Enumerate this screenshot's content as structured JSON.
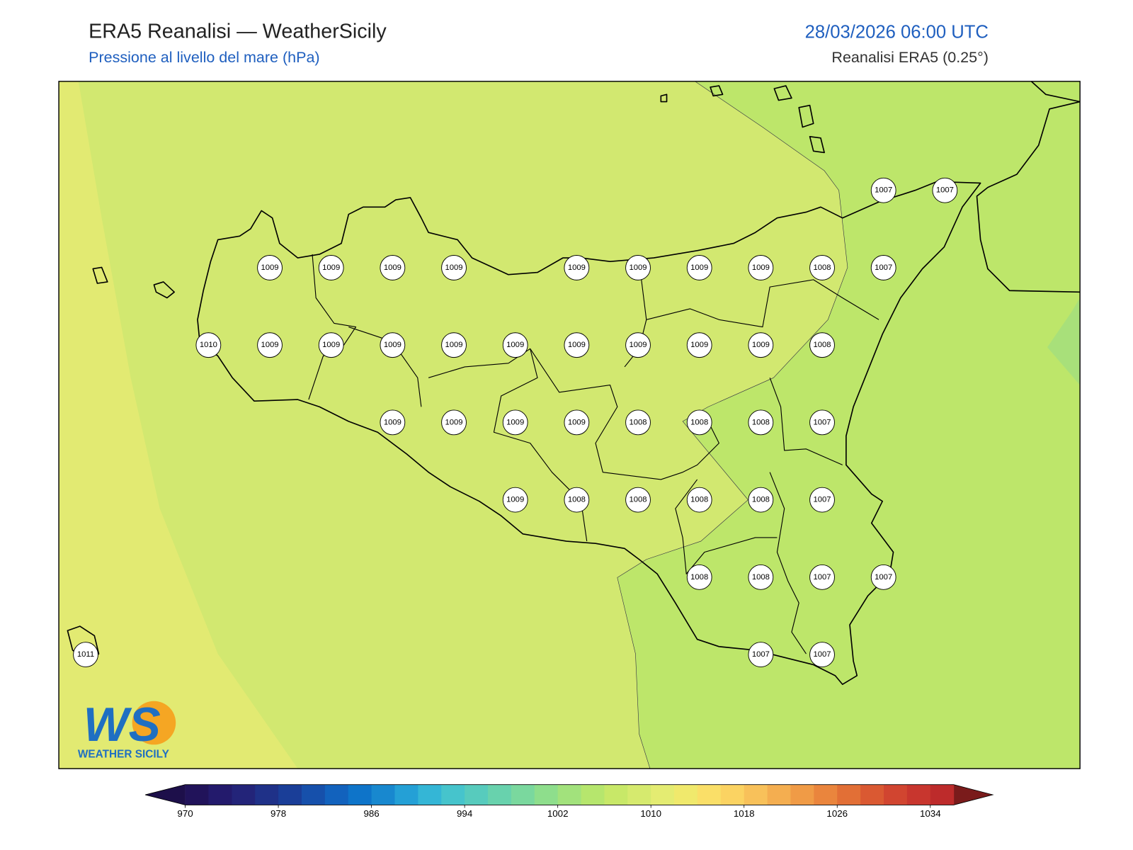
{
  "header": {
    "title": "ERA5 Reanalisi — WeatherSicily",
    "subtitle": "Pressione al livello del mare (hPa)",
    "datetime": "28/03/2026 06:00 UTC",
    "source": "Reanalisi ERA5 (0.25°)"
  },
  "stations": [
    [
      null,
      null,
      null,
      null,
      null,
      null,
      null,
      null,
      null,
      null,
      null,
      null,
      null,
      1007,
      1007
    ],
    [
      null,
      null,
      null,
      1009,
      1009,
      1009,
      1009,
      null,
      1009,
      1009,
      1009,
      1009,
      1008,
      1007,
      null
    ],
    [
      null,
      null,
      1010,
      1009,
      1009,
      1009,
      1009,
      1009,
      1009,
      1009,
      1009,
      1009,
      1008,
      null,
      null
    ],
    [
      null,
      null,
      null,
      null,
      null,
      1009,
      1009,
      1009,
      1009,
      1008,
      1008,
      1008,
      1007,
      null,
      null
    ],
    [
      null,
      null,
      null,
      null,
      null,
      null,
      null,
      1009,
      1008,
      1008,
      1008,
      1008,
      1007,
      null,
      null
    ],
    [
      null,
      null,
      null,
      null,
      null,
      null,
      null,
      null,
      null,
      null,
      1008,
      1008,
      1007,
      1007,
      null
    ],
    [
      1011,
      null,
      null,
      null,
      null,
      null,
      null,
      null,
      null,
      null,
      null,
      1007,
      1007,
      null,
      null
    ]
  ],
  "colorbar": {
    "range": [
      970,
      1036
    ],
    "ticks": [
      970,
      978,
      986,
      994,
      1002,
      1010,
      1018,
      1026,
      1034
    ],
    "colors": [
      "#21135a",
      "#231a6c",
      "#232479",
      "#1f3188",
      "#1a3e98",
      "#1650ab",
      "#1262bd",
      "#0e74c9",
      "#1888cf",
      "#24a0d6",
      "#34b6d6",
      "#46c4cc",
      "#57cbbd",
      "#68d2ad",
      "#7ad89e",
      "#8ede8c",
      "#a2e27c",
      "#b6e66d",
      "#c8e868",
      "#d6ea6e",
      "#e4ec72",
      "#f0e96c",
      "#fadf68",
      "#fbd362",
      "#f8c15a",
      "#f4ae50",
      "#f09b46",
      "#ea853d",
      "#e26f36",
      "#da5932",
      "#d14530",
      "#c8362e",
      "#bd2b2b"
    ],
    "extend_colors": [
      "#1d0f4a",
      "#7a1b1b"
    ]
  },
  "logo": {
    "text": "WS",
    "caption": "WEATHER SICILY"
  }
}
